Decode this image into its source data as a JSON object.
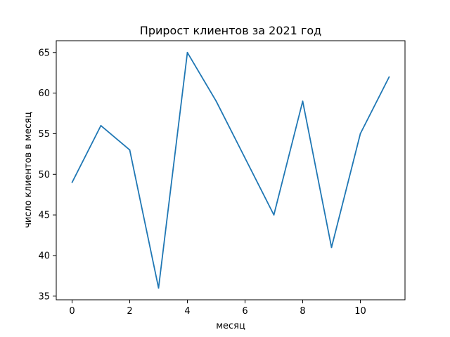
{
  "chart_data": {
    "type": "line",
    "title": "Прирост клиентов за 2021 год",
    "xlabel": "месяц",
    "ylabel": "число клиентов в месяц",
    "xlim": [
      -0.55,
      11.55
    ],
    "ylim": [
      34.55,
      66.45
    ],
    "xticks": [
      0,
      2,
      4,
      6,
      8,
      10
    ],
    "yticks": [
      35,
      40,
      45,
      50,
      55,
      60,
      65
    ],
    "grid": false,
    "series": [
      {
        "color": "#1f77b4",
        "x": [
          0,
          1,
          2,
          3,
          4,
          5,
          6,
          7,
          8,
          9,
          10,
          11
        ],
        "y": [
          49,
          56,
          53,
          36,
          65,
          59,
          52,
          45,
          59,
          41,
          55,
          62
        ]
      }
    ]
  }
}
